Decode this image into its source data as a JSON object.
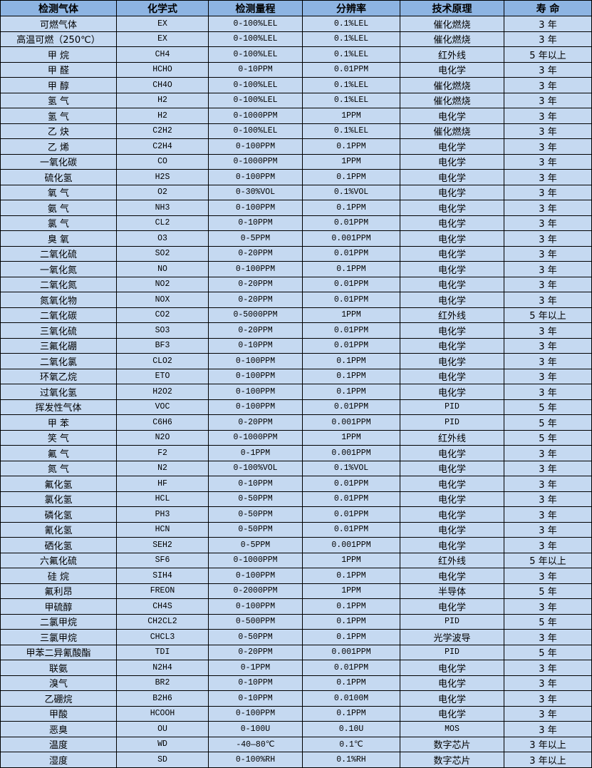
{
  "headers": [
    "检测气体",
    "化学式",
    "检测量程",
    "分辨率",
    "技术原理",
    "寿 命"
  ],
  "rows": [
    [
      "可燃气体",
      "EX",
      "0-100%LEL",
      "0.1%LEL",
      "催化燃烧",
      "3 年"
    ],
    [
      "高温可燃（250℃）",
      "EX",
      "0-100%LEL",
      "0.1%LEL",
      "催化燃烧",
      "3 年"
    ],
    [
      "甲 烷",
      "CH4",
      "0-100%LEL",
      "0.1%LEL",
      "红外线",
      "5 年以上"
    ],
    [
      "甲 醛",
      "HCHO",
      "0-10PPM",
      "0.01PPM",
      "电化学",
      "3 年"
    ],
    [
      "甲 醇",
      "CH4O",
      "0-100%LEL",
      "0.1%LEL",
      "催化燃烧",
      "3 年"
    ],
    [
      "氢 气",
      "H2",
      "0-100%LEL",
      "0.1%LEL",
      "催化燃烧",
      "3 年"
    ],
    [
      "氢 气",
      "H2",
      "0-1000PPM",
      "1PPM",
      "电化学",
      "3 年"
    ],
    [
      "乙 炔",
      "C2H2",
      "0-100%LEL",
      "0.1%LEL",
      "催化燃烧",
      "3 年"
    ],
    [
      "乙 烯",
      "C2H4",
      "0-100PPM",
      "0.1PPM",
      "电化学",
      "3 年"
    ],
    [
      "一氧化碳",
      "CO",
      "0-1000PPM",
      "1PPM",
      "电化学",
      "3 年"
    ],
    [
      "硫化氢",
      "H2S",
      "0-100PPM",
      "0.1PPM",
      "电化学",
      "3 年"
    ],
    [
      "氧 气",
      "O2",
      "0-30%VOL",
      "0.1%VOL",
      "电化学",
      "3 年"
    ],
    [
      "氨 气",
      "NH3",
      "0-100PPM",
      "0.1PPM",
      "电化学",
      "3 年"
    ],
    [
      "氯 气",
      "CL2",
      "0-10PPM",
      "0.01PPM",
      "电化学",
      "3 年"
    ],
    [
      "臭 氧",
      "O3",
      "0-5PPM",
      "0.001PPM",
      "电化学",
      "3 年"
    ],
    [
      "二氧化硫",
      "SO2",
      "0-20PPM",
      "0.01PPM",
      "电化学",
      "3 年"
    ],
    [
      "一氧化氮",
      "NO",
      "0-100PPM",
      "0.1PPM",
      "电化学",
      "3 年"
    ],
    [
      "二氧化氮",
      "NO2",
      "0-20PPM",
      "0.01PPM",
      "电化学",
      "3 年"
    ],
    [
      "氮氧化物",
      "NOX",
      "0-20PPM",
      "0.01PPM",
      "电化学",
      "3 年"
    ],
    [
      "二氧化碳",
      "CO2",
      "0-5000PPM",
      "1PPM",
      "红外线",
      "5 年以上"
    ],
    [
      "三氧化硫",
      "SO3",
      "0-20PPM",
      "0.01PPM",
      "电化学",
      "3 年"
    ],
    [
      "三氟化硼",
      "BF3",
      "0-10PPM",
      "0.01PPM",
      "电化学",
      "3 年"
    ],
    [
      "二氧化氯",
      "CLO2",
      "0-100PPM",
      "0.1PPM",
      "电化学",
      "3 年"
    ],
    [
      "环氧乙烷",
      "ETO",
      "0-100PPM",
      "0.1PPM",
      "电化学",
      "3 年"
    ],
    [
      "过氧化氢",
      "H2O2",
      "0-100PPM",
      "0.1PPM",
      "电化学",
      "3 年"
    ],
    [
      "挥发性气体",
      "VOC",
      "0-100PPM",
      "0.01PPM",
      "PID",
      "5 年"
    ],
    [
      "甲 苯",
      "C6H6",
      "0-20PPM",
      "0.001PPM",
      "PID",
      "5 年"
    ],
    [
      "笑 气",
      "N2O",
      "0-1000PPM",
      "1PPM",
      "红外线",
      "5 年"
    ],
    [
      "氟 气",
      "F2",
      "0-1PPM",
      "0.001PPM",
      "电化学",
      "3 年"
    ],
    [
      "氮 气",
      "N2",
      "0-100%VOL",
      "0.1%VOL",
      "电化学",
      "3 年"
    ],
    [
      "氟化氢",
      "HF",
      "0-10PPM",
      "0.01PPM",
      "电化学",
      "3 年"
    ],
    [
      "氯化氢",
      "HCL",
      "0-50PPM",
      "0.01PPM",
      "电化学",
      "3 年"
    ],
    [
      "磷化氢",
      "PH3",
      "0-50PPM",
      "0.01PPM",
      "电化学",
      "3 年"
    ],
    [
      "氰化氢",
      "HCN",
      "0-50PPM",
      "0.01PPM",
      "电化学",
      "3 年"
    ],
    [
      "硒化氢",
      "SEH2",
      "0-5PPM",
      "0.001PPM",
      "电化学",
      "3 年"
    ],
    [
      "六氟化硫",
      "SF6",
      "0-1000PPM",
      "1PPM",
      "红外线",
      "5 年以上"
    ],
    [
      "硅 烷",
      "SIH4",
      "0-100PPM",
      "0.1PPM",
      "电化学",
      "3 年"
    ],
    [
      "氟利昂",
      "FREON",
      "0-2000PPM",
      "1PPM",
      "半导体",
      "5 年"
    ],
    [
      "甲硫醇",
      "CH4S",
      "0-100PPM",
      "0.1PPM",
      "电化学",
      "3 年"
    ],
    [
      "二氯甲烷",
      "CH2CL2",
      "0-500PPM",
      "0.1PPM",
      "PID",
      "5 年"
    ],
    [
      "三氯甲烷",
      "CHCL3",
      "0-50PPM",
      "0.1PPM",
      "光学波导",
      "3 年"
    ],
    [
      "甲苯二异氰酸酯",
      "TDI",
      "0-20PPM",
      "0.001PPM",
      "PID",
      "5 年"
    ],
    [
      "联氨",
      "N2H4",
      "0-1PPM",
      "0.01PPM",
      "电化学",
      "3 年"
    ],
    [
      "溴气",
      "BR2",
      "0-10PPM",
      "0.1PPM",
      "电化学",
      "3 年"
    ],
    [
      "乙硼烷",
      "B2H6",
      "0-10PPM",
      "0.0100M",
      "电化学",
      "3 年"
    ],
    [
      "甲酸",
      "HCOOH",
      "0-100PPM",
      "0.1PPM",
      "电化学",
      "3 年"
    ],
    [
      "恶臭",
      "OU",
      "0-100U",
      "0.10U",
      "MOS",
      "3 年"
    ],
    [
      "温度",
      "WD",
      "-40—80℃",
      "0.1℃",
      "数字芯片",
      "3 年以上"
    ],
    [
      "湿度",
      "SD",
      "0-100%RH",
      "0.1%RH",
      "数字芯片",
      "3 年以上"
    ]
  ],
  "colors": {
    "header_bg": "#8db4e2",
    "row_bg": "#c5d9f1"
  }
}
